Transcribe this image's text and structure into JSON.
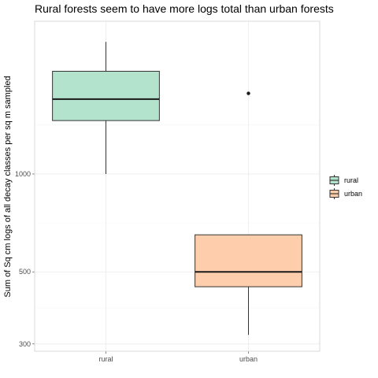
{
  "chart_data": {
    "type": "box",
    "title": "Rural forests seem to have more logs total than urban forests",
    "xlabel": "",
    "ylabel": "Sum of Sq cm logs of all decay classes per sq m sampled",
    "y_scale": "log10",
    "ylim": [
      285,
      2950
    ],
    "y_ticks": [
      300,
      500,
      1000
    ],
    "y_tick_labels": [
      "300",
      "500",
      "1000"
    ],
    "categories": [
      "rural",
      "urban"
    ],
    "series": [
      {
        "name": "rural",
        "color": "#b3e2cd",
        "whisker_low": 1000,
        "q1": 1460,
        "median": 1700,
        "q3": 2070,
        "whisker_high": 2550,
        "outliers": []
      },
      {
        "name": "urban",
        "color": "#fdcdac",
        "whisker_low": 320,
        "q1": 450,
        "median": 500,
        "q3": 650,
        "whisker_high": 650,
        "outliers": [
          1770
        ]
      }
    ],
    "legend": {
      "position": "right",
      "entries": [
        "rural",
        "urban"
      ]
    },
    "grid": true,
    "theme": {
      "panel_border": "#d9d9d9",
      "grid_major": "#ebebeb",
      "grid_minor": "#f5f5f5",
      "box_stroke": "#333333",
      "median_stroke": "#1a1a1a"
    }
  }
}
